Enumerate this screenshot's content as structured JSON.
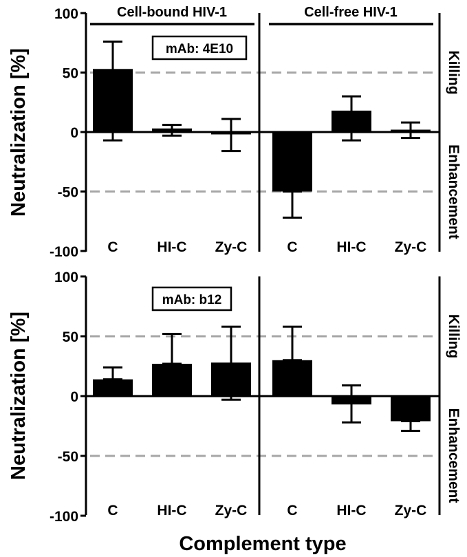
{
  "xlabel": "Complement type",
  "killing_label": "Killing",
  "enhancement_label": "Enhancement",
  "colors": {
    "bar": "#000000",
    "reference_line": "#a6a6a6",
    "axis": "#000000"
  },
  "chart_data": [
    {
      "type": "bar",
      "annotation": "mAb: 4E10",
      "ylabel": "Neutralization [%]",
      "ylim": [
        -100,
        100
      ],
      "yticks": [
        100,
        50,
        0,
        -50,
        -100
      ],
      "reference_lines": [
        50,
        -50
      ],
      "groups": [
        {
          "header": "Cell-bound HIV-1",
          "categories": [
            "C",
            "HI-C",
            "Zy-C"
          ],
          "values": [
            53,
            3,
            -2
          ],
          "error_upper": [
            76,
            6,
            11
          ],
          "error_lower": [
            -7,
            -3,
            -16
          ]
        },
        {
          "header": "Cell-free HIV-1",
          "categories": [
            "C",
            "HI-C",
            "Zy-C"
          ],
          "values": [
            -50,
            18,
            2
          ],
          "error_upper": [
            -50,
            30,
            8
          ],
          "error_lower": [
            -72,
            -7,
            -5
          ]
        }
      ]
    },
    {
      "type": "bar",
      "annotation": "mAb: b12",
      "ylabel": "Neutralization [%]",
      "ylim": [
        -100,
        100
      ],
      "yticks": [
        100,
        50,
        0,
        -50,
        -100
      ],
      "reference_lines": [
        50,
        -50
      ],
      "groups": [
        {
          "header": "",
          "categories": [
            "C",
            "HI-C",
            "Zy-C"
          ],
          "values": [
            14,
            27,
            28
          ],
          "error_upper": [
            24,
            52,
            58
          ],
          "error_lower": [
            14,
            27,
            -3
          ]
        },
        {
          "header": "",
          "categories": [
            "C",
            "HI-C",
            "Zy-C"
          ],
          "values": [
            30,
            -7,
            -21
          ],
          "error_upper": [
            58,
            9,
            -21
          ],
          "error_lower": [
            30,
            -22,
            -29
          ]
        }
      ]
    }
  ]
}
